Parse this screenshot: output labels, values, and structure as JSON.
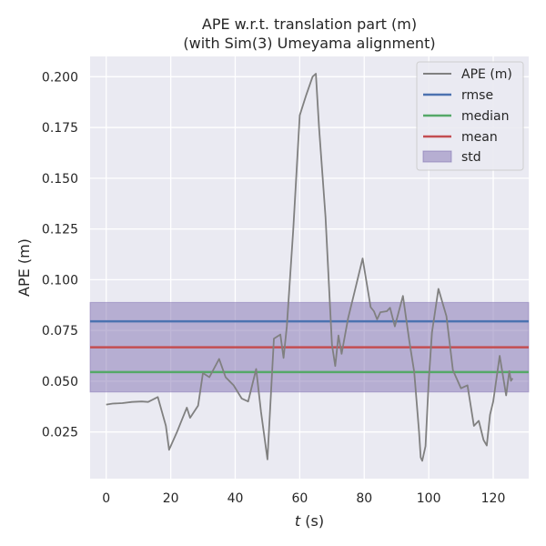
{
  "chart_data": {
    "type": "line",
    "title_line1": "APE w.r.t. translation part (m)",
    "title_line2": "(with Sim(3) Umeyama alignment)",
    "xlabel_var": "t",
    "xlabel_unit": " (s)",
    "ylabel": "APE (m)",
    "xlim": [
      -5,
      131
    ],
    "ylim": [
      0.002,
      0.21
    ],
    "xticks": [
      0,
      20,
      40,
      60,
      80,
      100,
      120
    ],
    "xtick_labels": [
      "0",
      "20",
      "40",
      "60",
      "80",
      "100",
      "120"
    ],
    "yticks": [
      0.025,
      0.05,
      0.075,
      0.1,
      0.125,
      0.15,
      0.175,
      0.2
    ],
    "ytick_labels": [
      "0.025",
      "0.050",
      "0.075",
      "0.100",
      "0.125",
      "0.150",
      "0.175",
      "0.200"
    ],
    "grid": true,
    "legend_position": "top-right",
    "series": [
      {
        "name": "APE (m)",
        "color": "#808080",
        "x": [
          0,
          2,
          5,
          8,
          11,
          13,
          16,
          18.5,
          19.5,
          22,
          25,
          26,
          28.5,
          30,
          32,
          35,
          37,
          39.5,
          42,
          44,
          46.5,
          48,
          50,
          52,
          54,
          55,
          56,
          58,
          60,
          62,
          64,
          65,
          66,
          68,
          70,
          71,
          72,
          73,
          75,
          77,
          79.5,
          82,
          83,
          84,
          85,
          87,
          88,
          89.5,
          92,
          94,
          95.5,
          97,
          97.5,
          98,
          99,
          100,
          101,
          103,
          105.5,
          107.5,
          110,
          112,
          114,
          115.5,
          117,
          118,
          119,
          120,
          122,
          124,
          125,
          125.5,
          126
        ],
        "y": [
          0.0385,
          0.039,
          0.0392,
          0.0398,
          0.04,
          0.0398,
          0.0422,
          0.028,
          0.0162,
          0.0252,
          0.037,
          0.032,
          0.038,
          0.054,
          0.052,
          0.061,
          0.052,
          0.048,
          0.0415,
          0.04,
          0.056,
          0.035,
          0.0115,
          0.071,
          0.073,
          0.0615,
          0.077,
          0.125,
          0.181,
          0.191,
          0.2,
          0.2015,
          0.175,
          0.131,
          0.068,
          0.0575,
          0.0725,
          0.0635,
          0.081,
          0.094,
          0.1105,
          0.0865,
          0.0845,
          0.0805,
          0.084,
          0.0845,
          0.0862,
          0.077,
          0.092,
          0.0695,
          0.0545,
          0.025,
          0.0125,
          0.0108,
          0.018,
          0.05,
          0.074,
          0.0955,
          0.082,
          0.0555,
          0.0465,
          0.048,
          0.028,
          0.0305,
          0.021,
          0.0183,
          0.0335,
          0.04,
          0.0625,
          0.043,
          0.055,
          0.0502,
          0.0515
        ]
      },
      {
        "name": "rmse",
        "color": "#4c72b0",
        "value": 0.0795
      },
      {
        "name": "median",
        "color": "#55a868",
        "value": 0.0545
      },
      {
        "name": "mean",
        "color": "#c44e52",
        "value": 0.0667
      },
      {
        "name": "std",
        "color": "#8172b2",
        "range": [
          0.0447,
          0.0888
        ]
      }
    ]
  }
}
